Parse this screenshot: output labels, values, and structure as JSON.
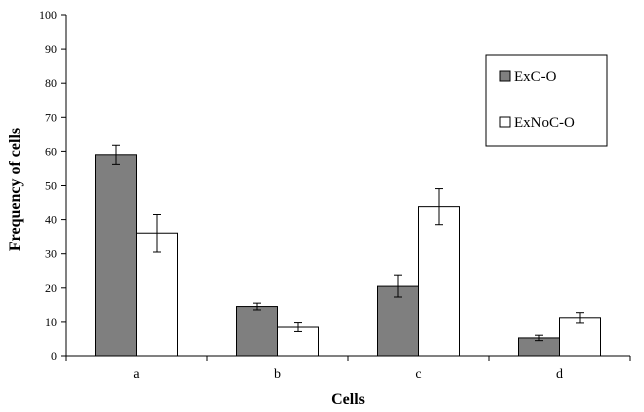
{
  "chart_data": {
    "type": "bar",
    "title": "",
    "xlabel": "Cells",
    "ylabel": "Frequency  of cells",
    "categories": [
      "a",
      "b",
      "c",
      "d"
    ],
    "ylim": [
      0,
      100
    ],
    "yticks": [
      0,
      10,
      20,
      30,
      40,
      50,
      60,
      70,
      80,
      90,
      100
    ],
    "grid": false,
    "legend_position": "top-right",
    "series": [
      {
        "name": "ExC-O",
        "color": "#7f7f7f",
        "values": [
          59,
          14.5,
          20.5,
          5.3
        ],
        "errors": [
          2.8,
          1.0,
          3.2,
          0.8
        ]
      },
      {
        "name": "ExNoC-O",
        "color": "#ffffff",
        "values": [
          36,
          8.5,
          43.8,
          11.2
        ],
        "errors": [
          5.5,
          1.3,
          5.3,
          1.5
        ]
      }
    ]
  }
}
